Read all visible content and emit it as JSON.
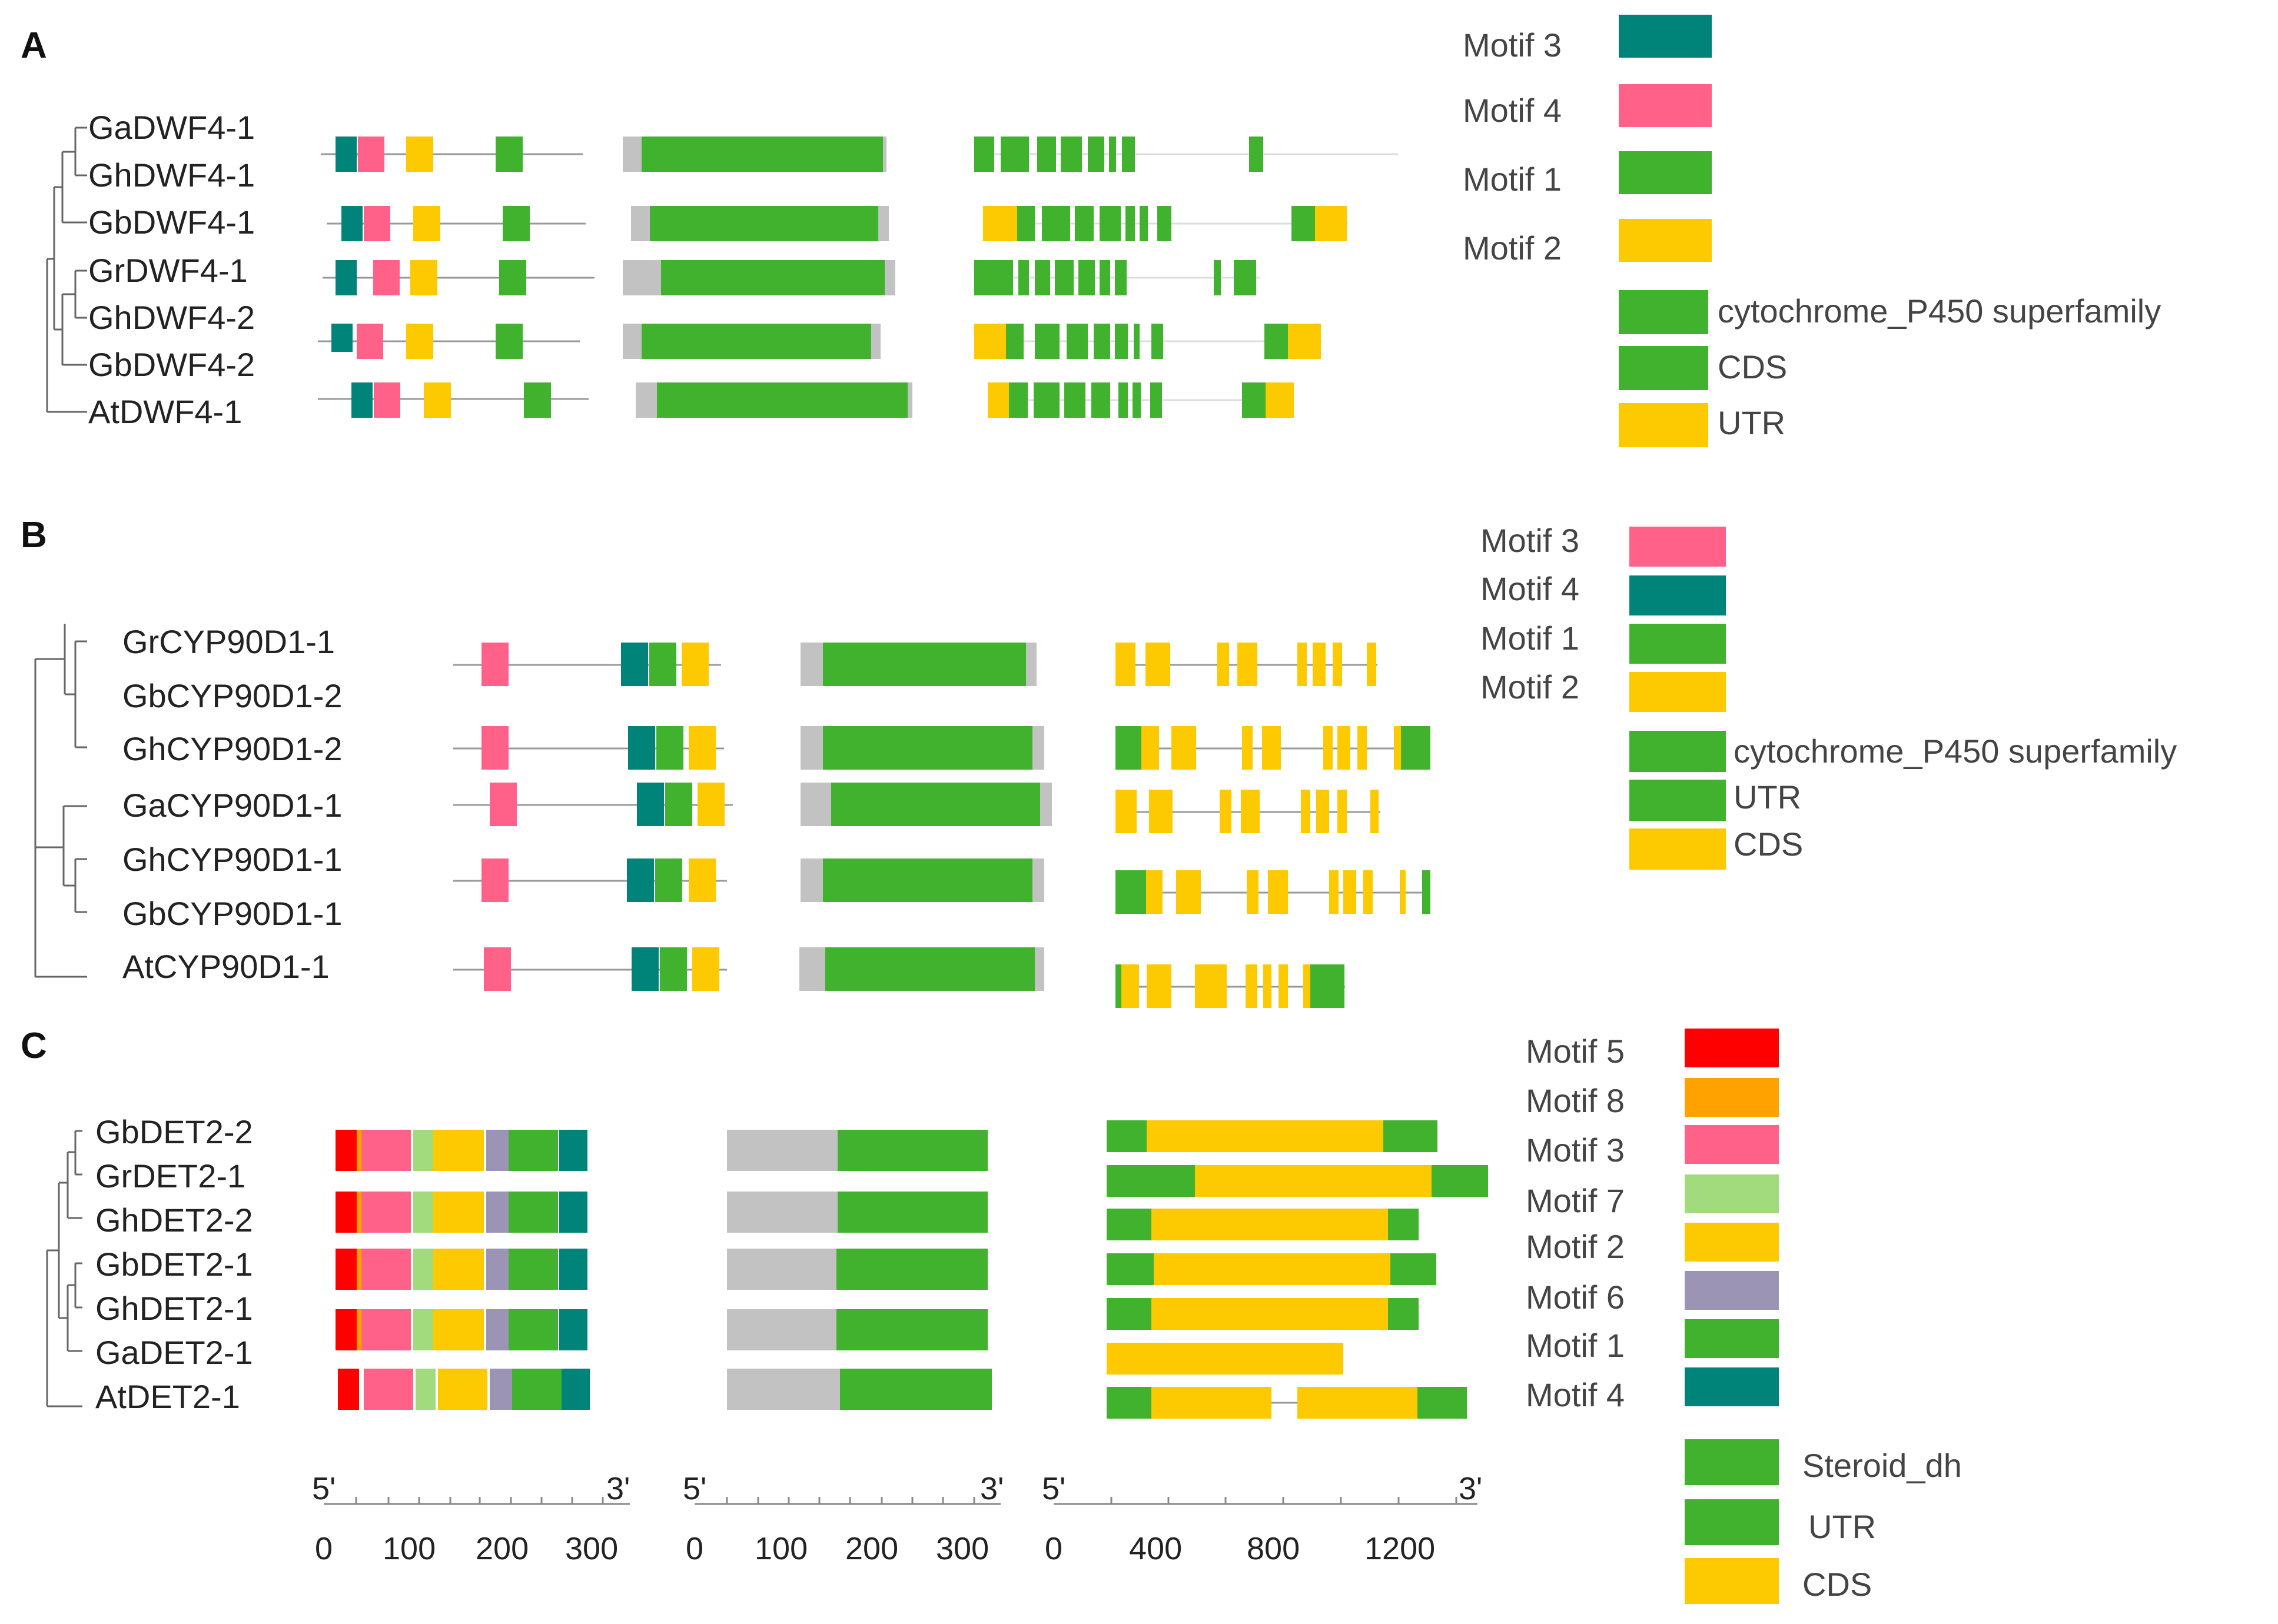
{
  "colors": {
    "teal": "#008379",
    "pink": "#FF6189",
    "green": "#41B22E",
    "yellow": "#FDC900",
    "gray": "#C2C2C2",
    "red": "#FF0000",
    "orange": "#FFA200",
    "light_green": "#A2DA7E",
    "purple": "#9B94B5",
    "line": "#999999"
  },
  "panels": [
    {
      "label": "A",
      "genes": [
        "GaDWF4-1",
        "GhDWF4-1",
        "GbDWF4-1",
        "GrDWF4-1",
        "GhDWF4-2",
        "GbDWF4-2",
        "AtDWF4-1"
      ],
      "legend_motifs": [
        {
          "label": "Motif 3",
          "color": "#008379"
        },
        {
          "label": "Motif 4",
          "color": "#FF6189"
        },
        {
          "label": "Motif 1",
          "color": "#41B22E"
        },
        {
          "label": "Motif 2",
          "color": "#FDC900"
        }
      ],
      "legend_features": [
        {
          "label": "cytochrome_P450 superfamily",
          "color": "#41B22E"
        },
        {
          "label": "CDS",
          "color": "#41B22E"
        },
        {
          "label": "UTR",
          "color": "#FDC900"
        }
      ]
    },
    {
      "label": "B",
      "genes": [
        "GrCYP90D1-1",
        "GbCYP90D1-2",
        "GhCYP90D1-2",
        "GaCYP90D1-1",
        "GhCYP90D1-1",
        "GbCYP90D1-1",
        "AtCYP90D1-1"
      ],
      "legend_motifs": [
        {
          "label": "Motif 3",
          "color": "#FF6189"
        },
        {
          "label": "Motif 4",
          "color": "#008379"
        },
        {
          "label": "Motif 1",
          "color": "#41B22E"
        },
        {
          "label": "Motif 2",
          "color": "#FDC900"
        }
      ],
      "legend_features": [
        {
          "label": "cytochrome_P450 superfamily",
          "color": "#41B22E"
        },
        {
          "label": "UTR",
          "color": "#41B22E"
        },
        {
          "label": "CDS",
          "color": "#FDC900"
        }
      ]
    },
    {
      "label": "C",
      "genes": [
        "GbDET2-2",
        "GrDET2-1",
        "GhDET2-2",
        "GbDET2-1",
        "GhDET2-1",
        "GaDET2-1",
        "AtDET2-1"
      ],
      "legend_motifs": [
        {
          "label": "Motif 5",
          "color": "#FF0000"
        },
        {
          "label": "Motif 8",
          "color": "#FFA200"
        },
        {
          "label": "Motif 3",
          "color": "#FF6189"
        },
        {
          "label": "Motif 7",
          "color": "#A2DA7E"
        },
        {
          "label": "Motif 2",
          "color": "#FDC900"
        },
        {
          "label": "Motif 6",
          "color": "#9B94B5"
        },
        {
          "label": "Motif 1",
          "color": "#41B22E"
        },
        {
          "label": "Motif 4",
          "color": "#008379"
        }
      ],
      "legend_features": [
        {
          "label": "Steroid_dh",
          "color": "#41B22E"
        },
        {
          "label": "UTR",
          "color": "#41B22E"
        },
        {
          "label": "CDS",
          "color": "#FDC900"
        }
      ]
    }
  ],
  "axes": [
    {
      "start_label": "5'",
      "end_label": "3'",
      "ticks": [
        "0",
        "100",
        "200",
        "300"
      ]
    },
    {
      "start_label": "5'",
      "end_label": "3'",
      "ticks": [
        "0",
        "100",
        "200",
        "300"
      ]
    },
    {
      "start_label": "5'",
      "end_label": "3'",
      "ticks": [
        "0",
        "400",
        "800",
        "1200"
      ]
    }
  ]
}
